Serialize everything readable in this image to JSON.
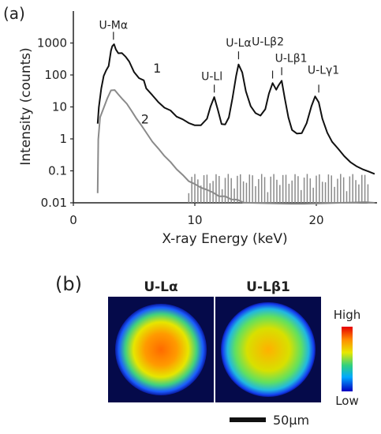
{
  "panel_a_label": "(a)",
  "panel_b_label": "(b)",
  "chart_data": {
    "type": "line",
    "xlabel": "X-ray Energy (keV)",
    "ylabel": "Intensity (counts)",
    "xlim": [
      0,
      25
    ],
    "ylim": [
      0.01,
      10000
    ],
    "yscale": "log",
    "grid": false,
    "x_ticks": [
      0,
      10,
      20
    ],
    "x_tick_labels": [
      "0",
      "10",
      "20"
    ],
    "y_ticks": [
      0.01,
      0.1,
      1,
      10,
      100,
      1000
    ],
    "y_tick_labels": [
      "0.01",
      "0.1",
      "1",
      "10",
      "100",
      "1000"
    ],
    "series": [
      {
        "label": "1",
        "color": "#111111",
        "x": [
          2.0,
          2.1,
          2.3,
          2.5,
          2.7,
          2.9,
          3.1,
          3.2,
          3.35,
          3.5,
          3.7,
          4.0,
          4.3,
          4.6,
          5.0,
          5.4,
          5.8,
          6.0,
          6.5,
          7.0,
          7.5,
          8.0,
          8.5,
          9.0,
          9.5,
          10.0,
          10.5,
          11.0,
          11.3,
          11.6,
          11.9,
          12.2,
          12.5,
          12.8,
          13.1,
          13.4,
          13.6,
          13.9,
          14.2,
          14.6,
          15.0,
          15.4,
          15.8,
          16.1,
          16.4,
          16.7,
          16.9,
          17.15,
          17.4,
          17.7,
          18.0,
          18.4,
          18.8,
          19.2,
          19.6,
          19.9,
          20.2,
          20.5,
          20.9,
          21.3,
          21.8,
          22.3,
          22.8,
          23.3,
          23.8,
          24.3,
          24.8
        ],
        "y": [
          3,
          10,
          40,
          100,
          150,
          200,
          600,
          800,
          900,
          600,
          450,
          450,
          350,
          250,
          120,
          80,
          70,
          40,
          25,
          15,
          10,
          8,
          5,
          4,
          3,
          2.5,
          2.5,
          4,
          10,
          20,
          8,
          3,
          3,
          5,
          20,
          100,
          220,
          120,
          30,
          10,
          6,
          5,
          8,
          25,
          55,
          35,
          50,
          70,
          20,
          5,
          2,
          1.5,
          1.5,
          3,
          10,
          20,
          13,
          4,
          1.5,
          0.8,
          0.5,
          0.3,
          0.2,
          0.15,
          0.12,
          0.1,
          0.08
        ]
      },
      {
        "label": "2",
        "color": "#8a8a8a",
        "x": [
          2.0,
          2.05,
          2.2,
          2.5,
          2.8,
          3.1,
          3.4,
          3.7,
          4.0,
          4.4,
          4.8,
          5.2,
          5.6,
          6.0,
          6.5,
          7.0,
          7.5,
          8.0,
          8.5,
          9.0,
          9.5,
          10.0,
          10.5,
          11.0,
          11.5,
          12.0,
          12.5,
          13.0,
          13.5,
          14.0,
          15.0,
          16.0,
          17.0,
          18.0,
          19.0,
          20.0,
          21.0,
          22.0,
          23.0,
          24.0,
          24.8
        ],
        "y": [
          0.02,
          1,
          5,
          10,
          20,
          35,
          35,
          25,
          18,
          12,
          7,
          4,
          2.5,
          1.5,
          0.8,
          0.5,
          0.3,
          0.2,
          0.12,
          0.08,
          0.05,
          0.04,
          0.03,
          0.025,
          0.02,
          0.015,
          0.015,
          0.012,
          0.012,
          0.01,
          0.01,
          0.01,
          0.01,
          0.01,
          0.01,
          0.01,
          0.01,
          0.01,
          0.01,
          0.01,
          0.01
        ]
      }
    ],
    "annotations": [
      {
        "text": "U-Mα",
        "x": 3.3,
        "y": 900
      },
      {
        "text": "U-Ll",
        "x": 11.6,
        "y": 20
      },
      {
        "text": "U-Lα",
        "x": 13.6,
        "y": 220
      },
      {
        "text": "U-Lβ2",
        "x": 16.4,
        "y": 55
      },
      {
        "text": "U-Lβ1",
        "x": 17.15,
        "y": 70
      },
      {
        "text": "U-Lγ1",
        "x": 20.2,
        "y": 20
      }
    ]
  },
  "maps": [
    {
      "title": "U-Lα"
    },
    {
      "title": "U-Lβ1"
    }
  ],
  "colorbar": {
    "high_label": "High",
    "low_label": "Low"
  },
  "scalebar": {
    "label": "50µm"
  }
}
